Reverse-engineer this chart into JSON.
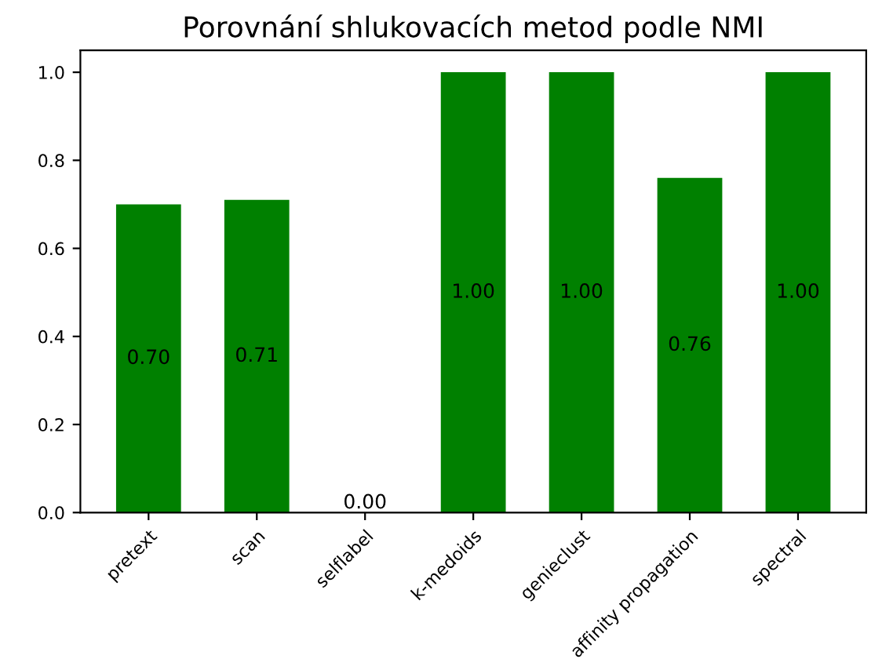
{
  "chart_data": {
    "type": "bar",
    "title": "Porovnání shlukovacích metod podle NMI",
    "categories": [
      "pretext",
      "scan",
      "selflabel",
      "k-medoids",
      "genieclust",
      "affinity propagation",
      "spectral"
    ],
    "values": [
      0.7,
      0.71,
      0.0,
      1.0,
      1.0,
      0.76,
      1.0
    ],
    "value_labels": [
      "0.70",
      "0.71",
      "0.00",
      "1.00",
      "1.00",
      "0.76",
      "1.00"
    ],
    "color": "#008000",
    "ylim": [
      0,
      1.05
    ],
    "yticks": [
      {
        "value": 0,
        "label": "0.0"
      },
      0.2,
      0.4,
      0.6,
      0.8,
      {
        "value": 1,
        "label": "1.0"
      }
    ],
    "grid": false
  }
}
